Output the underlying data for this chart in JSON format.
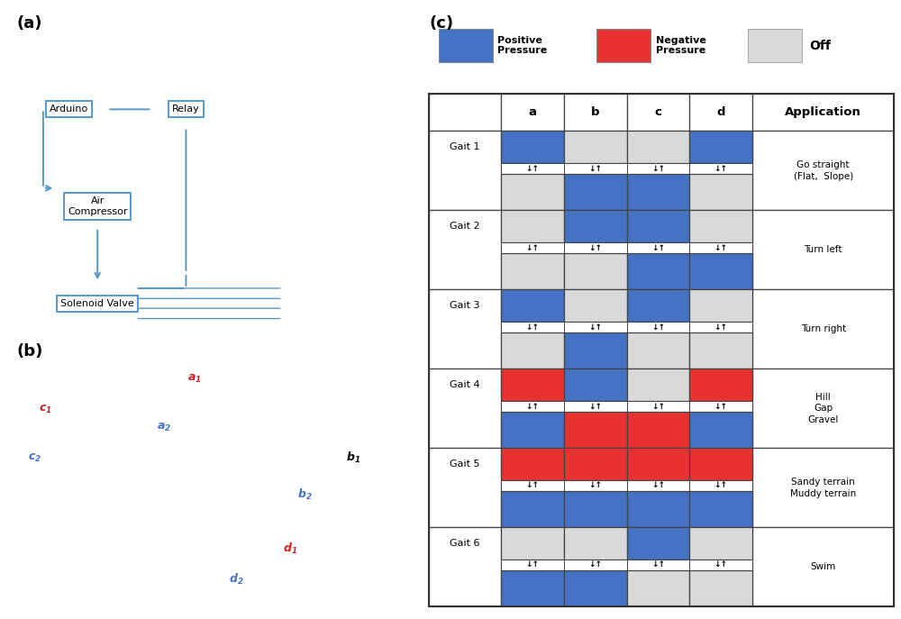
{
  "panel_c_label": "(c)",
  "panel_a_label": "(a)",
  "panel_b_label": "(b)",
  "blue": "#4472C4",
  "red": "#E83232",
  "off": "#D9D9D9",
  "border_color": "#555555",
  "bg_color": "#ffffff",
  "columns": [
    "a",
    "b",
    "c",
    "d"
  ],
  "application_col": "Application",
  "gaits": [
    {
      "name": "Gait 1",
      "row1": [
        "blue",
        "off",
        "off",
        "blue"
      ],
      "row2": [
        "off",
        "blue",
        "blue",
        "off"
      ],
      "application": "Go straight\n(Flat,  Slope)"
    },
    {
      "name": "Gait 2",
      "row1": [
        "off",
        "blue",
        "blue",
        "off"
      ],
      "row2": [
        "off",
        "off",
        "blue",
        "blue"
      ],
      "application": "Turn left"
    },
    {
      "name": "Gait 3",
      "row1": [
        "blue",
        "off",
        "blue",
        "off"
      ],
      "row2": [
        "off",
        "blue",
        "off",
        "off"
      ],
      "application": "Turn right"
    },
    {
      "name": "Gait 4",
      "row1": [
        "red",
        "blue",
        "off",
        "red"
      ],
      "row2": [
        "blue",
        "red",
        "red",
        "blue"
      ],
      "application": "Hill\nGap\nGravel"
    },
    {
      "name": "Gait 5",
      "row1": [
        "red",
        "red",
        "red",
        "red"
      ],
      "row2": [
        "blue",
        "blue",
        "blue",
        "blue"
      ],
      "application": "Sandy terrain\nMuddy terrain"
    },
    {
      "name": "Gait 6",
      "row1": [
        "off",
        "off",
        "blue",
        "off"
      ],
      "row2": [
        "blue",
        "blue",
        "off",
        "off"
      ],
      "application": "Swim"
    }
  ],
  "boxes_a": [
    {
      "label": "Arduino",
      "col": 0,
      "row": 0
    },
    {
      "label": "Relay",
      "col": 1,
      "row": 0
    },
    {
      "label": "Air\nCompressor",
      "col": 0,
      "row": 1
    },
    {
      "label": "Solenoid Valve",
      "col": 0,
      "row": 2
    }
  ]
}
